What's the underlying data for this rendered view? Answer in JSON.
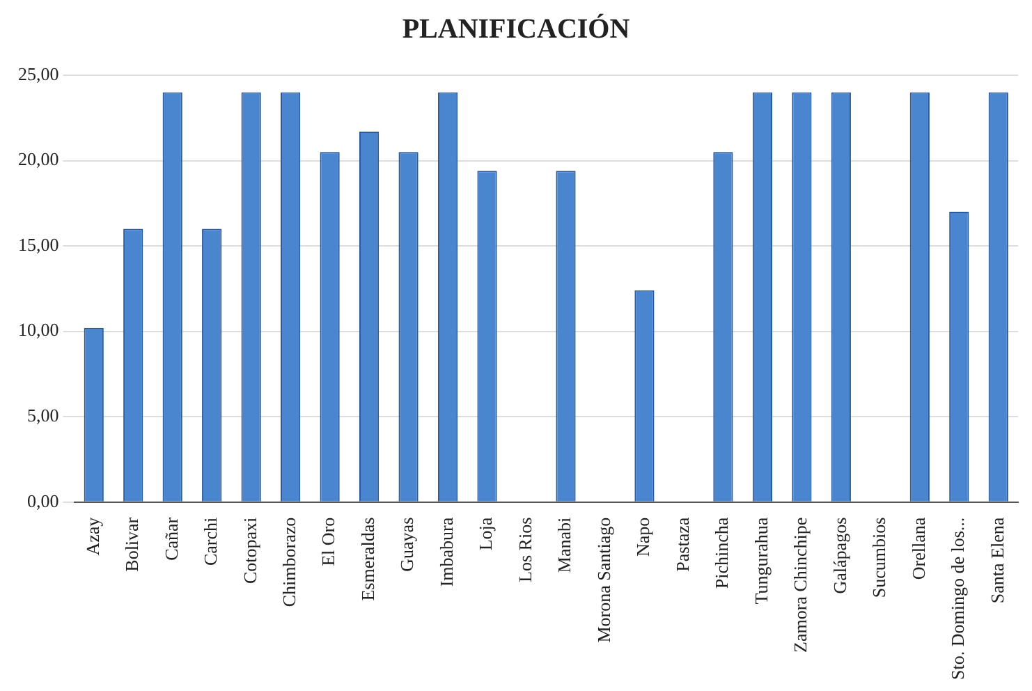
{
  "chart_data": {
    "type": "bar",
    "title": "PLANIFICACIÓN",
    "categories": [
      "Azay",
      "Bolivar",
      "Cañar",
      "Carchi",
      "Cotopaxi",
      "Chimborazo",
      "El Oro",
      "Esmeraldas",
      "Guayas",
      "Imbabura",
      "Loja",
      "Los Rios",
      "Manabi",
      "Morona Santiago",
      "Napo",
      "Pastaza",
      "Pichincha",
      "Tungurahua",
      "Zamora Chinchipe",
      "Galápagos",
      "Sucumbios",
      "Orellana",
      "Sto. Domingo de los...",
      "Santa Elena"
    ],
    "values": [
      10.2,
      16,
      24,
      16,
      24,
      24,
      20.5,
      21.7,
      20.5,
      24,
      19.4,
      0,
      19.4,
      0,
      12.4,
      0,
      20.5,
      24,
      24,
      24,
      0,
      24,
      17,
      24
    ],
    "color": "#4a86d0",
    "ylim": [
      0,
      25
    ],
    "yticks": [
      {
        "value": 0,
        "label": "0,00"
      },
      {
        "value": 5,
        "label": "5,00"
      },
      {
        "value": 10,
        "label": "10,00"
      },
      {
        "value": 15,
        "label": "15,00"
      },
      {
        "value": 20,
        "label": "20,00"
      },
      {
        "value": 25,
        "label": "25,00"
      }
    ],
    "grid": "y",
    "legend": false
  }
}
